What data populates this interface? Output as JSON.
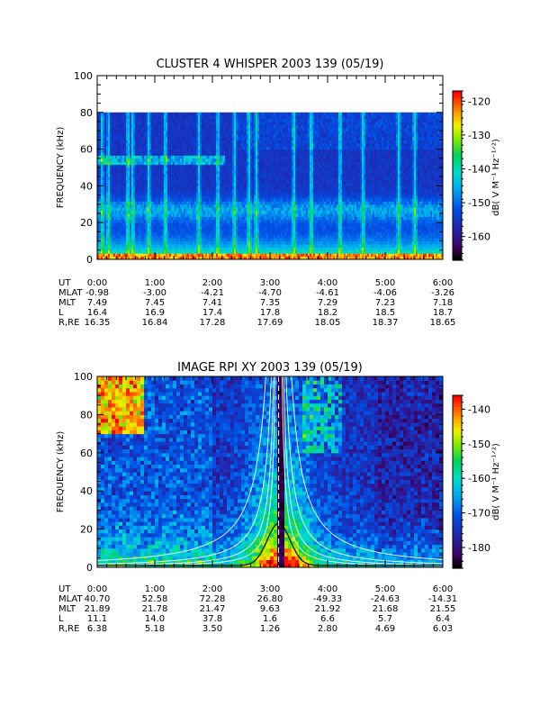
{
  "chart_data": [
    {
      "type": "heatmap",
      "title": "CLUSTER 4 WHISPER 2003 139 (05/19)",
      "ylabel": "FREQUENCY (kHz)",
      "ylim": [
        0,
        100
      ],
      "yticks": [
        "0",
        "20",
        "40",
        "60",
        "80",
        "100"
      ],
      "colorbar": {
        "label": "dB( V M⁻¹ Hz⁻¹ᐟ²)",
        "range": [
          -167,
          -117
        ],
        "ticks": [
          "-120",
          "-130",
          "-140",
          "-150",
          "-160"
        ],
        "tick_values": [
          -120,
          -130,
          -140,
          -150,
          -160
        ]
      },
      "data_extent_khz": 80,
      "ephemeris": {
        "labels": [
          "UT",
          "MLAT",
          "MLT",
          "L",
          "R,RE"
        ],
        "columns": [
          [
            "0:00",
            "-0.98",
            "7.49",
            "16.4",
            "16.35"
          ],
          [
            "1:00",
            "-3.00",
            "7.45",
            "16.9",
            "16.84"
          ],
          [
            "2:00",
            "-4.21",
            "7.41",
            "17.4",
            "17.28"
          ],
          [
            "3:00",
            "-4.70",
            "7.35",
            "17.8",
            "17.69"
          ],
          [
            "4:00",
            "-4.61",
            "7.29",
            "18.2",
            "18.05"
          ],
          [
            "5:00",
            "-4.06",
            "7.23",
            "18.5",
            "18.37"
          ],
          [
            "6:00",
            "-3.26",
            "7.18",
            "18.7",
            "18.65"
          ]
        ]
      }
    },
    {
      "type": "heatmap",
      "title": "IMAGE RPI XY 2003 139 (05/19)",
      "ylabel": "FREQUENCY (kHz)",
      "ylim": [
        0,
        100
      ],
      "yticks": [
        "0",
        "20",
        "40",
        "60",
        "80",
        "100"
      ],
      "colorbar": {
        "label": "dB( V M⁻¹ Hz⁻¹ᐟ²)",
        "range": [
          -186,
          -136
        ],
        "ticks": [
          "-140",
          "-150",
          "-160",
          "-170",
          "-180"
        ],
        "tick_values": [
          -140,
          -150,
          -160,
          -170,
          -180
        ]
      },
      "perigee_ut_hours": 3.15,
      "ephemeris": {
        "labels": [
          "UT",
          "MLAT",
          "MLT",
          "L",
          "R,RE"
        ],
        "columns": [
          [
            "0:00",
            "40.70",
            "21.89",
            "11.1",
            "6.38"
          ],
          [
            "1:00",
            "52.58",
            "21.78",
            "14.0",
            "5.18"
          ],
          [
            "2:00",
            "72.28",
            "21.47",
            "37.8",
            "3.50"
          ],
          [
            "3:00",
            "26.80",
            "9.63",
            "1.6",
            "1.26"
          ],
          [
            "4:00",
            "-49.33",
            "21.92",
            "6.6",
            "2.80"
          ],
          [
            "5:00",
            "-24.63",
            "21.68",
            "5.7",
            "4.69"
          ],
          [
            "6:00",
            "-14.31",
            "21.55",
            "6.4",
            "6.03"
          ]
        ]
      }
    }
  ]
}
